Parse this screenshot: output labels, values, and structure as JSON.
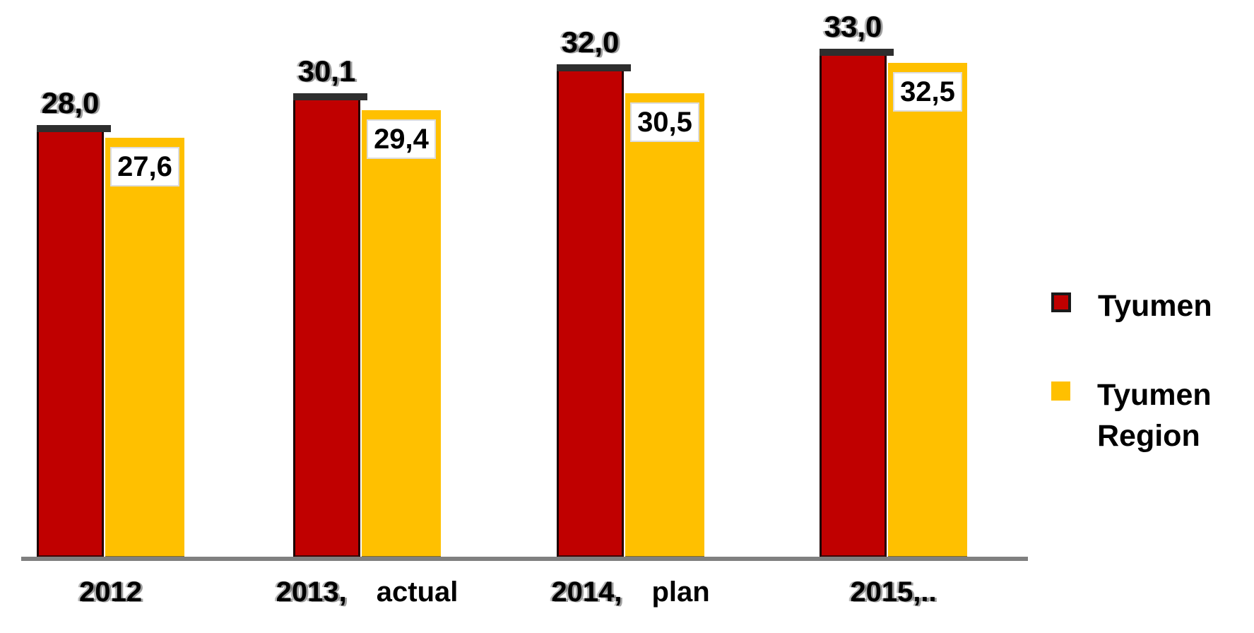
{
  "chart_data": {
    "type": "bar",
    "title": "",
    "xlabel": "",
    "ylabel": "",
    "categories": [
      "2012",
      "2013, actual",
      "2014, plan",
      "2015,.."
    ],
    "series": [
      {
        "name": "Tyumen",
        "color": "#C00000",
        "values": [
          28.0,
          30.1,
          32.0,
          33.0
        ],
        "labels": [
          "28,0",
          "30,1",
          "32,0",
          "33,0"
        ]
      },
      {
        "name": "Tyumen Region",
        "color": "#FFC000",
        "values": [
          27.6,
          29.4,
          30.5,
          32.5
        ],
        "labels": [
          "27,6",
          "29,4",
          "30,5",
          "32,5"
        ]
      }
    ],
    "ylim": [
      0,
      36.6
    ],
    "grid": false,
    "legend_position": "right"
  },
  "x_axis": {
    "labels": [
      {
        "year": "2012",
        "suffix": ""
      },
      {
        "year": "2013,",
        "suffix": "actual"
      },
      {
        "year": "2014,",
        "suffix": "plan"
      },
      {
        "year": "2015,..",
        "suffix": ""
      }
    ]
  },
  "legend": {
    "items": [
      {
        "label": "Tyumen",
        "color": "#C00000"
      },
      {
        "label": "Tyumen Region",
        "color": "#FFC000"
      }
    ]
  },
  "colors": {
    "bar_red": "#C00000",
    "bar_yellow": "#FFC000",
    "axis_line": "#808080",
    "label_text": "#000000",
    "label_box_bg": "#FFFFFF"
  }
}
